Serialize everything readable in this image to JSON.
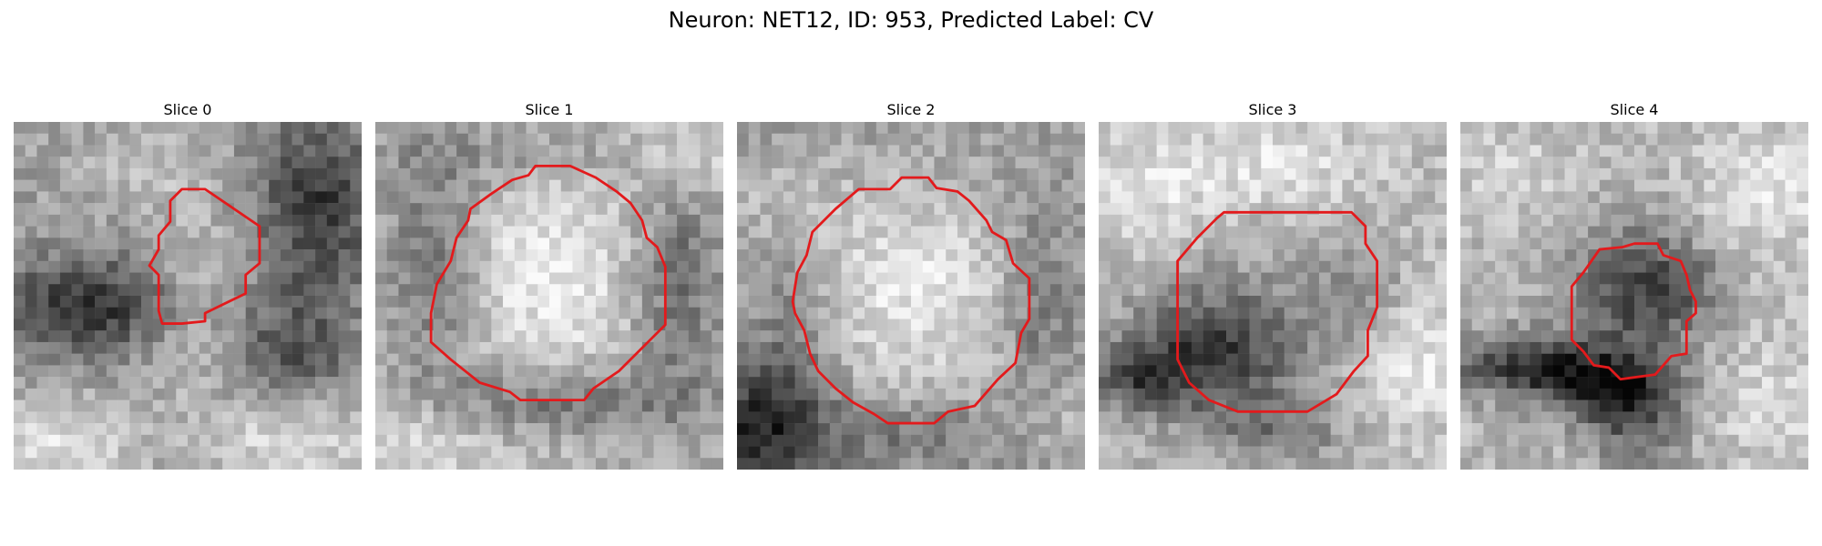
{
  "figure": {
    "title": "Neuron: NET12, ID: 953, Predicted Label: CV"
  },
  "panels": [
    {
      "title": "Slice 0",
      "outline_color": "#e31a1c"
    },
    {
      "title": "Slice 1",
      "outline_color": "#e31a1c"
    },
    {
      "title": "Slice 2",
      "outline_color": "#e31a1c"
    },
    {
      "title": "Slice 3",
      "outline_color": "#e31a1c"
    },
    {
      "title": "Slice 4",
      "outline_color": "#e31a1c"
    }
  ],
  "colors": {
    "outline": "#e31a1c",
    "colormap": "grayscale"
  }
}
